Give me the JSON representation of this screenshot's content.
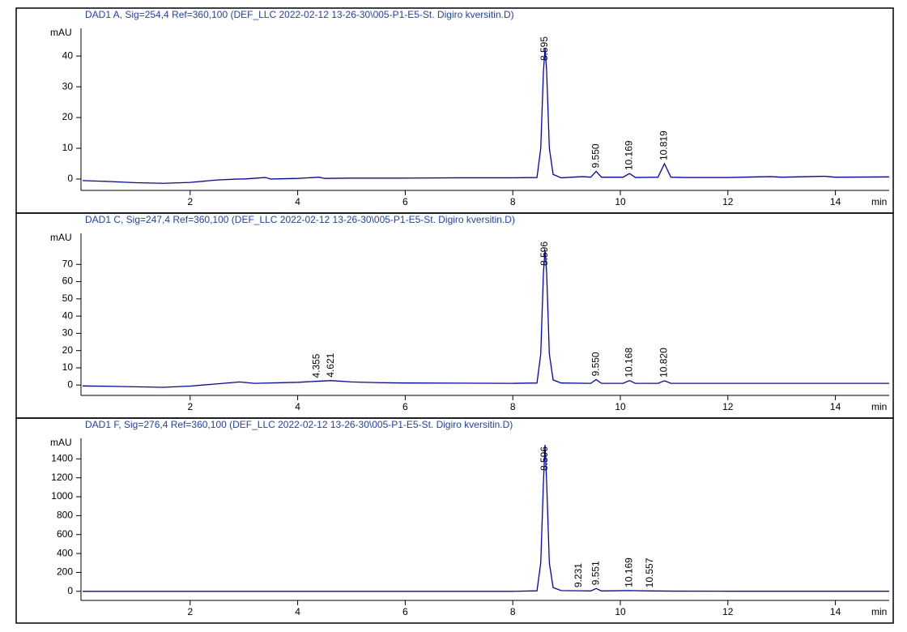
{
  "chart_data": [
    {
      "type": "line",
      "title": "DAD1 A, Sig=254,4 Ref=360,100 (DEF_LLC 2022-02-12 13-26-30\\005-P1-E5-St. Digiro kversitin.D)",
      "x_label": "min",
      "y_label": "mAU",
      "xlim": [
        0,
        15
      ],
      "xticks": [
        2,
        4,
        6,
        8,
        10,
        12,
        14
      ],
      "ylim": [
        -3.7,
        49
      ],
      "yticks": [
        0,
        10,
        20,
        30,
        40
      ],
      "series": [
        {
          "color": "#0000cc",
          "x": [
            0,
            0.5,
            1,
            1.5,
            2,
            2.5,
            2.9,
            3.0,
            3.4,
            3.5,
            4,
            4.4,
            4.5,
            5,
            6,
            7,
            8,
            8.45,
            8.52,
            8.57,
            8.6,
            8.63,
            8.68,
            8.75,
            8.9,
            9.3,
            9.45,
            9.55,
            9.65,
            10.05,
            10.17,
            10.28,
            10.7,
            10.82,
            10.94,
            11.2,
            12,
            12.8,
            13,
            13.8,
            14,
            15
          ],
          "values": [
            -0.5,
            -0.8,
            -1.2,
            -1.4,
            -1.1,
            -0.3,
            0,
            0,
            0.5,
            0,
            0.2,
            0.6,
            0.2,
            0.3,
            0.3,
            0.4,
            0.4,
            0.5,
            10,
            35,
            42.5,
            35,
            10,
            1.5,
            0.4,
            0.8,
            0.6,
            2.5,
            0.6,
            0.6,
            1.8,
            0.5,
            0.6,
            5,
            0.6,
            0.5,
            0.5,
            0.8,
            0.6,
            0.9,
            0.6,
            0.7
          ]
        }
      ],
      "peaks": [
        8.595,
        {
          "value": 9.55,
          "label": "9.550"
        },
        10.169,
        10.819
      ]
    },
    {
      "type": "line",
      "title": "DAD1 C, Sig=247,4 Ref=360,100 (DEF_LLC 2022-02-12 13-26-30\\005-P1-E5-St. Digiro kversitin.D)",
      "x_label": "min",
      "y_label": "mAU",
      "xlim": [
        0,
        15
      ],
      "xticks": [
        2,
        4,
        6,
        8,
        10,
        12,
        14
      ],
      "ylim": [
        -6,
        88
      ],
      "yticks": [
        0,
        10,
        20,
        30,
        40,
        50,
        60,
        70
      ],
      "series": [
        {
          "color": "#0000cc",
          "x": [
            0,
            0.5,
            1,
            1.5,
            2,
            2.5,
            2.92,
            3.2,
            4,
            4.355,
            4.621,
            5,
            5.5,
            6,
            7,
            8,
            8.45,
            8.52,
            8.57,
            8.6,
            8.63,
            8.68,
            8.75,
            8.9,
            9.45,
            9.55,
            9.65,
            10.05,
            10.17,
            10.28,
            10.7,
            10.82,
            10.94,
            12,
            13,
            14,
            15
          ],
          "values": [
            -0.5,
            -0.7,
            -1.0,
            -1.3,
            -0.6,
            0.7,
            1.8,
            1.0,
            1.6,
            2.2,
            2.6,
            1.8,
            1.4,
            1.2,
            1.1,
            1.0,
            1.2,
            18,
            65,
            78.5,
            65,
            18,
            3,
            1.2,
            1.0,
            3.2,
            1.0,
            1.0,
            2.6,
            1.0,
            1.0,
            2.5,
            1.0,
            1.0,
            1.0,
            1.0,
            1.0
          ]
        }
      ],
      "peaks": [
        4.355,
        4.621,
        8.596,
        {
          "value": 9.55,
          "label": "9.550"
        },
        10.168,
        {
          "value": 10.82,
          "label": "10.820"
        }
      ]
    },
    {
      "type": "line",
      "title": "DAD1 F, Sig=276,4 Ref=360,100 (DEF_LLC 2022-02-12 13-26-30\\005-P1-E5-St. Digiro kversitin.D)",
      "x_label": "min",
      "y_label": "mAU",
      "xlim": [
        0,
        15
      ],
      "xticks": [
        2,
        4,
        6,
        8,
        10,
        12,
        14
      ],
      "ylim": [
        -96,
        1617
      ],
      "yticks": [
        0,
        200,
        400,
        600,
        800,
        1000,
        1200,
        1400
      ],
      "series": [
        {
          "color": "#0000cc",
          "x": [
            0,
            2,
            4,
            6,
            8,
            8.45,
            8.52,
            8.57,
            8.6,
            8.63,
            8.68,
            8.75,
            8.9,
            9.231,
            9.45,
            9.551,
            9.65,
            10.169,
            10.557,
            11,
            12,
            14,
            15
          ],
          "values": [
            0,
            0,
            0,
            0,
            0,
            5,
            300,
            1150,
            1548,
            1150,
            300,
            40,
            8,
            6,
            4,
            30,
            4,
            8,
            4,
            2,
            1,
            1,
            1
          ]
        }
      ],
      "peaks": [
        8.596,
        9.231,
        9.551,
        10.169,
        10.557
      ]
    }
  ]
}
